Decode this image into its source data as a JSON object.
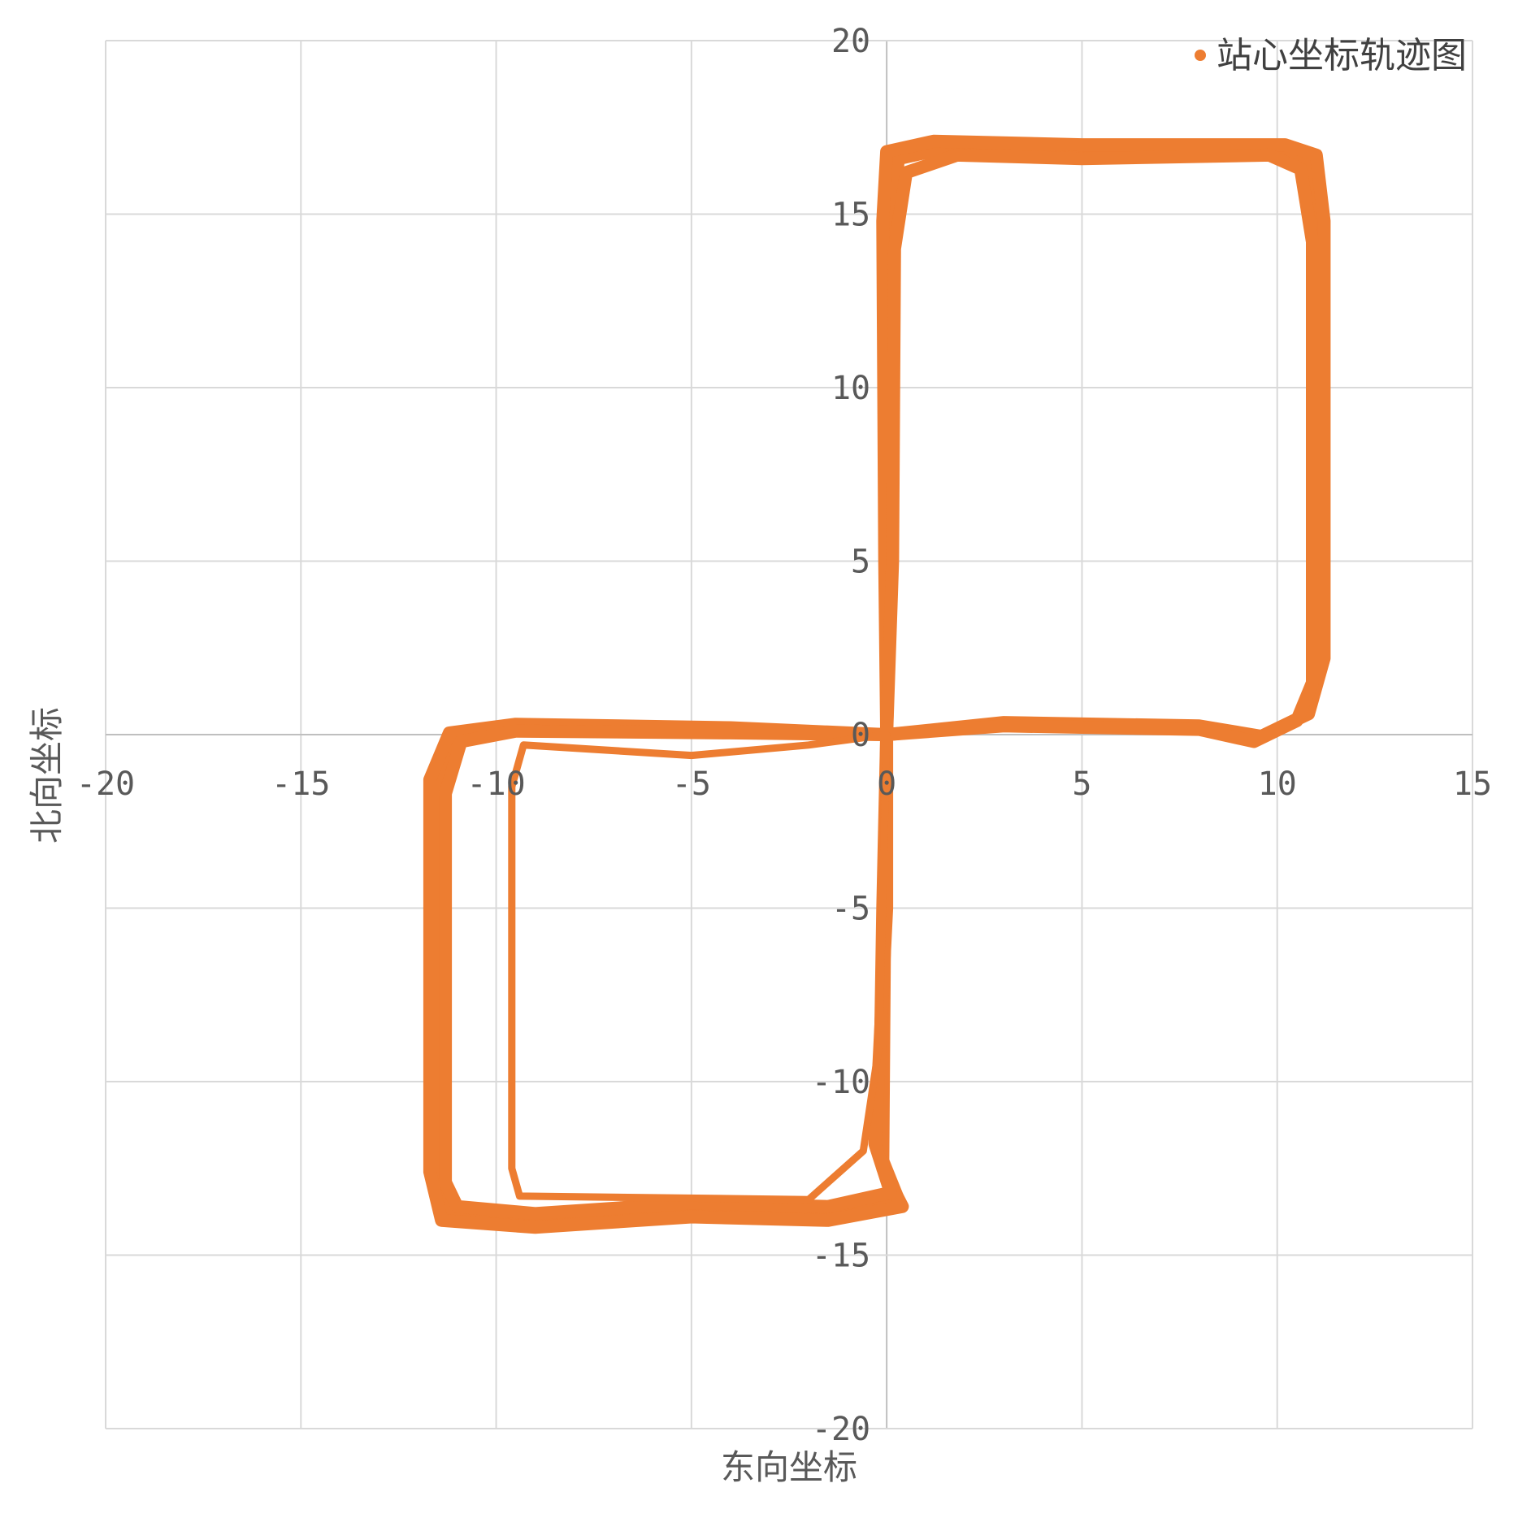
{
  "chart_data": {
    "type": "scatter",
    "title": "",
    "xlabel": "东向坐标",
    "ylabel": "北向坐标",
    "xlim": [
      -20,
      15
    ],
    "ylim": [
      -20,
      20
    ],
    "xticks": [
      "-20",
      "-15",
      "-10",
      "-5",
      "0",
      "5",
      "10",
      "15"
    ],
    "yticks": [
      "-20",
      "-15",
      "-10",
      "-5",
      "0",
      "5",
      "10",
      "15",
      "20"
    ],
    "grid": true,
    "legend_position": "top-right",
    "series": [
      {
        "name": "站心坐标轨迹图",
        "color": "#ED7D31",
        "loops": [
          [
            [
              0,
              0
            ],
            [
              3,
              0.3
            ],
            [
              8,
              0.2
            ],
            [
              9.5,
              -0.1
            ],
            [
              10.6,
              0.5
            ],
            [
              11.0,
              1.8
            ],
            [
              11.0,
              14.5
            ],
            [
              10.8,
              16.5
            ],
            [
              10.0,
              16.9
            ],
            [
              5,
              16.8
            ],
            [
              1.5,
              16.9
            ],
            [
              0.3,
              16.6
            ],
            [
              0.1,
              14.5
            ],
            [
              0.1,
              5
            ],
            [
              0,
              0
            ],
            [
              -0.1,
              -5
            ],
            [
              -0.2,
              -12
            ],
            [
              0.3,
              -13.4
            ],
            [
              -1.5,
              -13.8
            ],
            [
              -5,
              -13.7
            ],
            [
              -9,
              -14.0
            ],
            [
              -11.2,
              -13.8
            ],
            [
              -11.5,
              -12.8
            ],
            [
              -11.5,
              -1.5
            ],
            [
              -11.0,
              -0.1
            ],
            [
              -9.5,
              0.2
            ],
            [
              -4,
              0.1
            ],
            [
              0,
              0
            ]
          ],
          [
            [
              0,
              0
            ],
            [
              3,
              0.35
            ],
            [
              8,
              0.25
            ],
            [
              9.6,
              -0.05
            ],
            [
              10.8,
              0.6
            ],
            [
              11.2,
              2.2
            ],
            [
              11.2,
              14.8
            ],
            [
              11.0,
              16.7
            ],
            [
              10.2,
              17.0
            ],
            [
              5,
              17.0
            ],
            [
              1.2,
              17.1
            ],
            [
              0.0,
              16.8
            ],
            [
              -0.1,
              14.8
            ],
            [
              -0.05,
              5
            ],
            [
              0,
              0
            ],
            [
              -0.05,
              -5
            ],
            [
              -0.1,
              -12.5
            ],
            [
              0.4,
              -13.6
            ],
            [
              -1.5,
              -14.0
            ],
            [
              -5,
              -13.9
            ],
            [
              -9,
              -14.2
            ],
            [
              -11.4,
              -14.0
            ],
            [
              -11.7,
              -12.6
            ],
            [
              -11.7,
              -1.3
            ],
            [
              -11.2,
              0.05
            ],
            [
              -9.5,
              0.3
            ],
            [
              -4,
              0.2
            ],
            [
              0,
              0
            ]
          ],
          [
            [
              0,
              0
            ],
            [
              3,
              0.25
            ],
            [
              8,
              0.15
            ],
            [
              9.4,
              -0.2
            ],
            [
              10.5,
              0.4
            ],
            [
              10.9,
              1.5
            ],
            [
              10.9,
              14.2
            ],
            [
              10.6,
              16.3
            ],
            [
              9.8,
              16.7
            ],
            [
              5,
              16.6
            ],
            [
              1.8,
              16.7
            ],
            [
              0.5,
              16.2
            ],
            [
              0.2,
              14.0
            ],
            [
              0.15,
              5
            ],
            [
              0,
              0
            ],
            [
              0,
              -5
            ],
            [
              -0.3,
              -11.8
            ],
            [
              0.1,
              -13.2
            ],
            [
              -1.5,
              -13.6
            ],
            [
              -5,
              -13.5
            ],
            [
              -9,
              -13.8
            ],
            [
              -11.0,
              -13.6
            ],
            [
              -11.3,
              -12.9
            ],
            [
              -11.3,
              -1.7
            ],
            [
              -10.9,
              -0.2
            ],
            [
              -9.5,
              0.1
            ],
            [
              -4,
              0.05
            ],
            [
              0,
              0
            ]
          ],
          [
            [
              0,
              0
            ],
            [
              -2,
              -0.3
            ],
            [
              -5,
              -0.6
            ],
            [
              -9.3,
              -0.3
            ],
            [
              -9.6,
              -1.5
            ],
            [
              -9.6,
              -12.5
            ],
            [
              -9.4,
              -13.3
            ],
            [
              -2.0,
              -13.4
            ],
            [
              -0.6,
              -12.0
            ],
            [
              -0.2,
              -9.0
            ],
            [
              0,
              0
            ]
          ]
        ]
      }
    ]
  }
}
